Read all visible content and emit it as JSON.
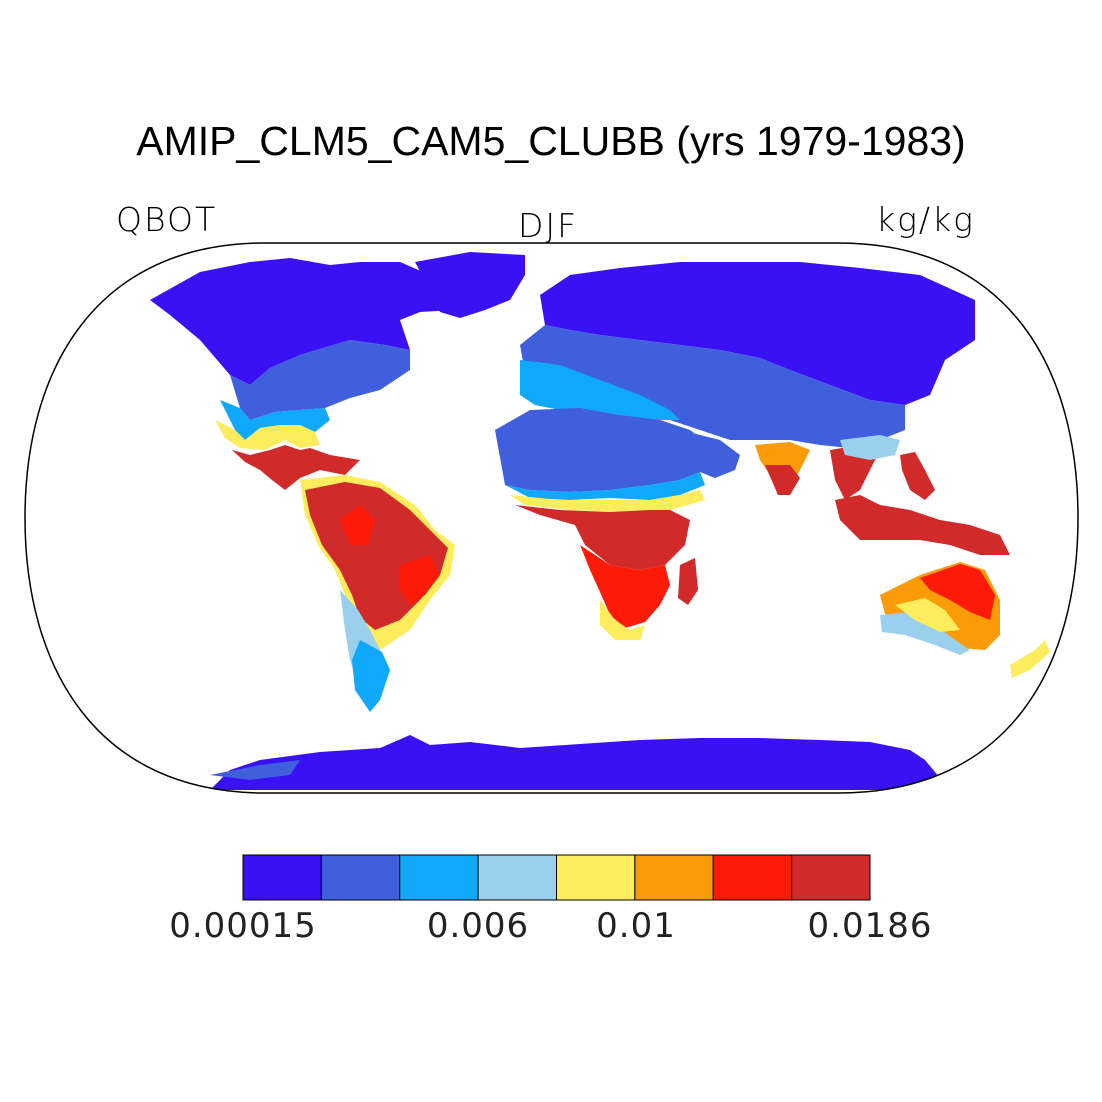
{
  "title": "AMIP_CLM5_CAM5_CLUBB (yrs 1979-1983)",
  "variable": "QBOT",
  "season": "DJF",
  "units": "kg/kg",
  "colorbar": {
    "colors": [
      "#3a10f5",
      "#3f5fdc",
      "#10a8f8",
      "#9ad0ee",
      "#fded5d",
      "#fb9b08",
      "#fd1a08",
      "#d02a2a"
    ],
    "labels": [
      "0.00015",
      "0.006",
      "0.01",
      "0.0186"
    ]
  },
  "map_regions": [
    {
      "name": "north-america-north",
      "color": "#3a10f5"
    },
    {
      "name": "greenland",
      "color": "#3a10f5"
    },
    {
      "name": "north-america-mid",
      "color": "#3f5fdc"
    },
    {
      "name": "eurasia-north",
      "color": "#3a10f5"
    },
    {
      "name": "eurasia-mid",
      "color": "#3f5fdc"
    },
    {
      "name": "europe-south",
      "color": "#10a8f8"
    },
    {
      "name": "sahara",
      "color": "#3f5fdc"
    },
    {
      "name": "central-america",
      "color": "#d02a2a"
    },
    {
      "name": "amazon",
      "color": "#d02a2a"
    },
    {
      "name": "southern-africa",
      "color": "#fd1a08"
    },
    {
      "name": "southeast-asia",
      "color": "#d02a2a"
    },
    {
      "name": "australia",
      "color": "#fb9b08"
    },
    {
      "name": "antarctica",
      "color": "#3a10f5"
    }
  ]
}
